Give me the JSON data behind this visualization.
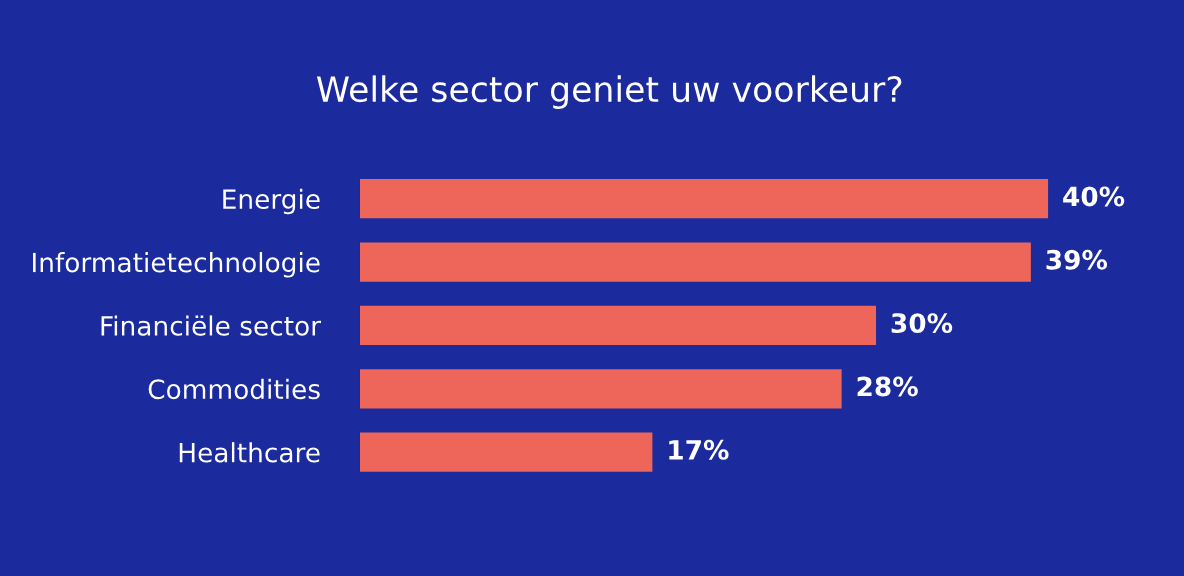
{
  "chart_data": {
    "type": "bar",
    "orientation": "horizontal",
    "title": "Welke sector geniet uw voorkeur?",
    "categories": [
      "Energie",
      "Informatietechnologie",
      "Financiële sector",
      "Commodities",
      "Healthcare"
    ],
    "values": [
      40,
      39,
      30,
      28,
      17
    ],
    "value_labels": [
      "40%",
      "39%",
      "30%",
      "28%",
      "17%"
    ],
    "color": "#ee6659"
  }
}
